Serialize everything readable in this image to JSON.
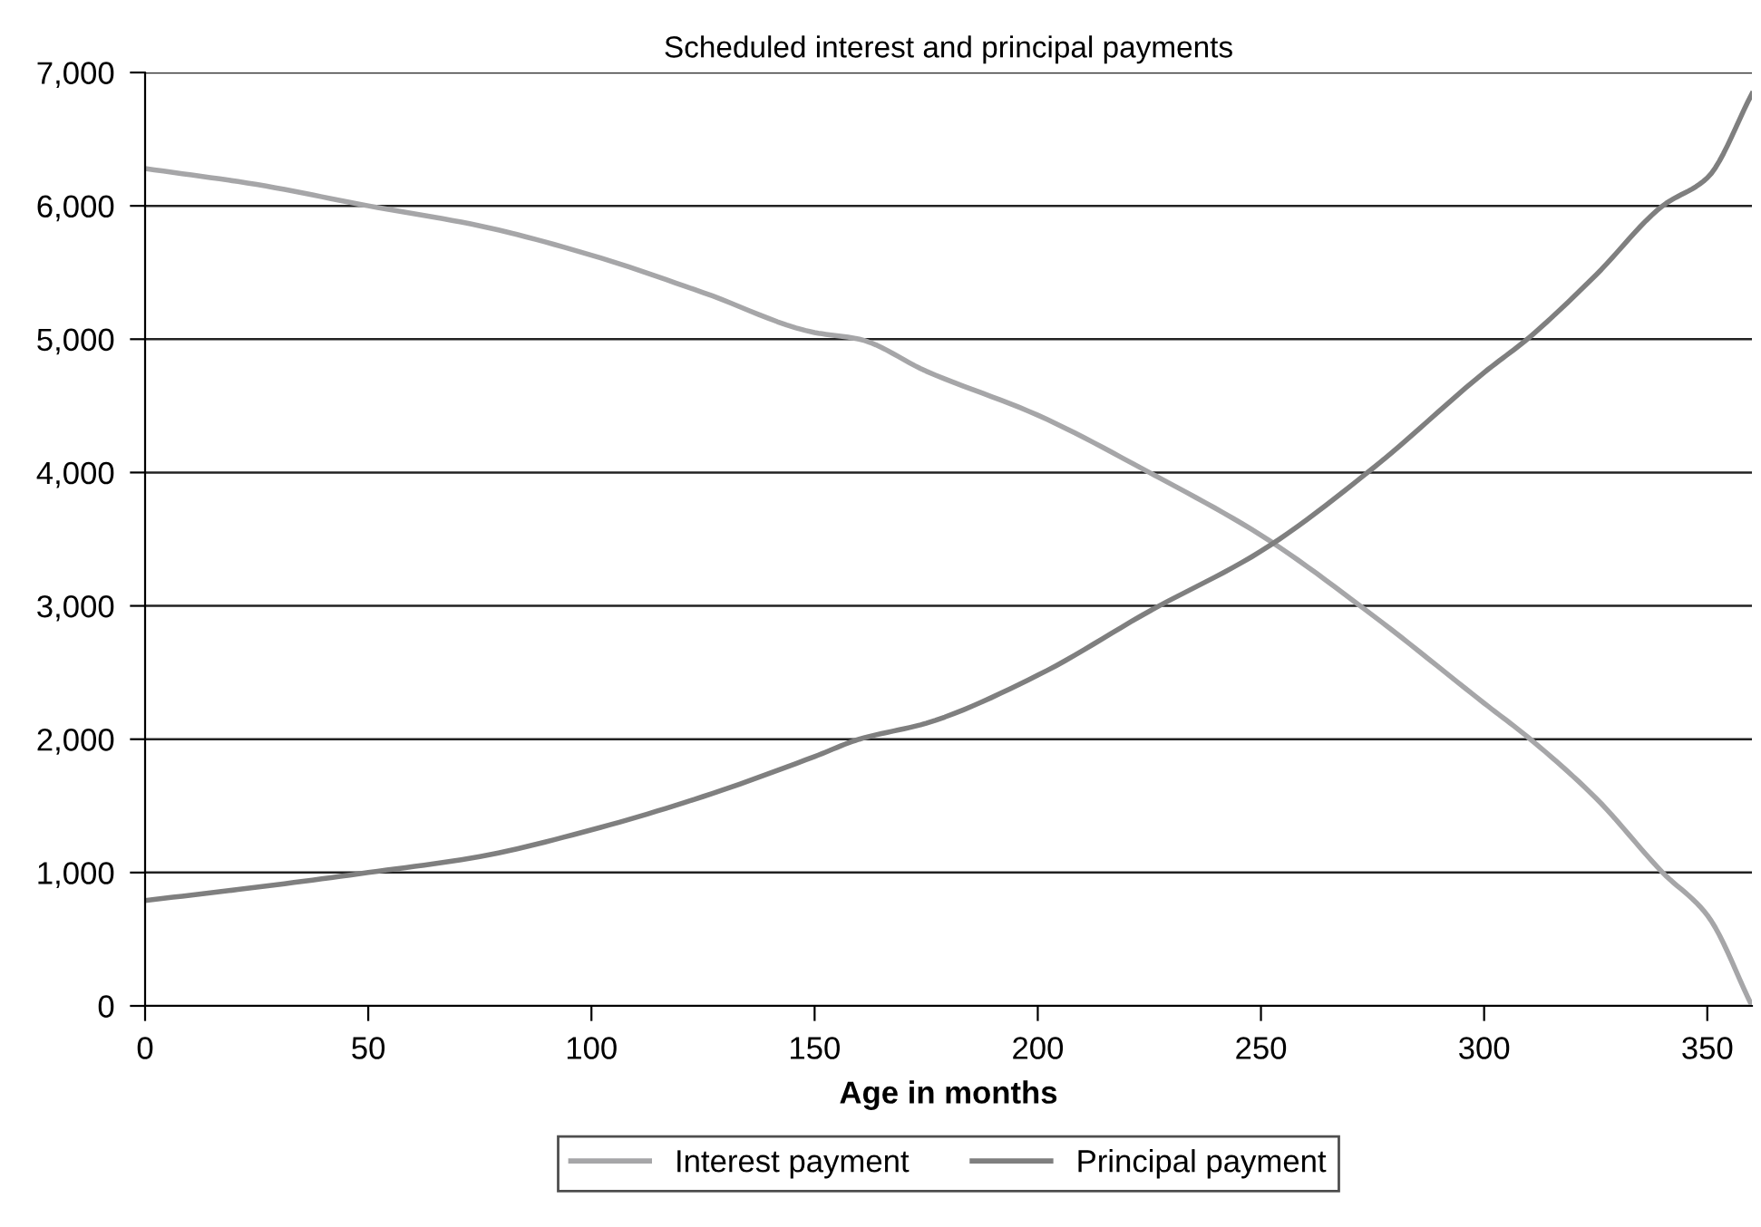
{
  "chart_data": {
    "type": "line",
    "title": "Scheduled interest and principal payments",
    "xlabel": "Age in months",
    "x": [
      0,
      25,
      50,
      75,
      100,
      125,
      150,
      160,
      175,
      200,
      225,
      250,
      275,
      300,
      310,
      325,
      340,
      350,
      360
    ],
    "series": [
      {
        "name": "Interest payment",
        "color": "#a6a6a8",
        "values": [
          6280,
          6160,
          6000,
          5850,
          5630,
          5350,
          5050,
          5000,
          4760,
          4430,
          4000,
          3530,
          2930,
          2270,
          2010,
          1560,
          1000,
          680,
          0
        ]
      },
      {
        "name": "Principal payment",
        "color": "#7f7f7f",
        "values": [
          790,
          890,
          1000,
          1120,
          1320,
          1570,
          1870,
          2000,
          2120,
          2480,
          2960,
          3410,
          4030,
          4750,
          5010,
          5480,
          6000,
          6210,
          6840
        ]
      }
    ],
    "xlim": [
      0,
      360
    ],
    "xticks": [
      0,
      50,
      100,
      150,
      200,
      250,
      300,
      350
    ],
    "ylim": [
      0,
      7000
    ],
    "yticks": [
      {
        "value": 0,
        "label": "0"
      },
      {
        "value": 1000,
        "label": "1,000"
      },
      {
        "value": 2000,
        "label": "2,000"
      },
      {
        "value": 3000,
        "label": "3,000"
      },
      {
        "value": 4000,
        "label": "4,000"
      },
      {
        "value": 5000,
        "label": "5,000"
      },
      {
        "value": 6000,
        "label": "6,000"
      },
      {
        "value": 7000,
        "label": "7,000"
      }
    ],
    "grid": "y",
    "legend": "bottom",
    "marker": "none",
    "line_style": "solid"
  }
}
